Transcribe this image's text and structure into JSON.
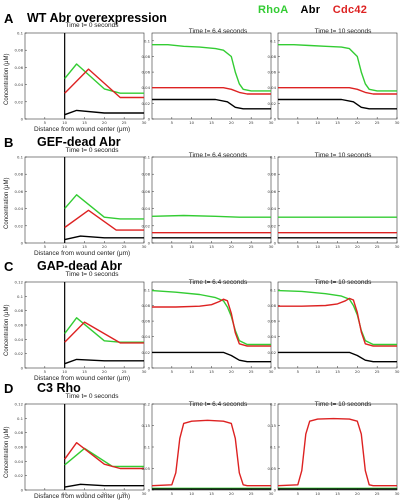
{
  "legend": [
    {
      "label": "RhoA",
      "color": "#33cc33"
    },
    {
      "label": "Abr",
      "color": "#000000"
    },
    {
      "label": "Cdc42",
      "color": "#dd2222"
    }
  ],
  "ylabel": "Concentration (μM)",
  "xlabel": "Distance from wound center (μm)",
  "rows": [
    {
      "letter": "A",
      "title": "WT Abr overexpression",
      "times": [
        "Time t= 0 seconds",
        "Time t= 6.4 seconds",
        "Time t= 10 seconds"
      ]
    },
    {
      "letter": "B",
      "title": "GEF-dead Abr",
      "times": [
        "Time t= 0 seconds",
        "Time t= 6.4 seconds",
        "Time t= 10 seconds"
      ]
    },
    {
      "letter": "C",
      "title": "GAP-dead Abr",
      "times": [
        "Time t= 0 seconds",
        "Time t= 6.4 seconds",
        "Time t= 10 seconds"
      ]
    },
    {
      "letter": "D",
      "title": "C3 Rho",
      "times": [
        "Time t= 0 seconds",
        "Time t= 6.4 seconds",
        "Time t= 10 seconds"
      ]
    }
  ],
  "chart_data": [
    {
      "type": "line",
      "row": "A",
      "title": "Time t= 0 seconds",
      "xlabel": "Distance from wound center (μm)",
      "ylabel": "Concentration (μM)",
      "xlim": [
        0,
        30
      ],
      "ylim": [
        0,
        0.1
      ],
      "yticks": [
        0,
        0.02,
        0.04,
        0.06,
        0.08,
        0.1
      ],
      "xticks": [
        5,
        10,
        15,
        20,
        25,
        30
      ],
      "series": [
        {
          "name": "RhoA",
          "color": "#33cc33",
          "x": [
            10,
            13,
            20,
            24,
            30
          ],
          "y": [
            0.047,
            0.064,
            0.035,
            0.03,
            0.03
          ]
        },
        {
          "name": "Cdc42",
          "color": "#dd2222",
          "x": [
            10,
            16,
            24,
            30
          ],
          "y": [
            0.03,
            0.058,
            0.025,
            0.025
          ]
        },
        {
          "name": "Abr",
          "color": "#000000",
          "x": [
            10,
            13,
            20,
            30
          ],
          "y": [
            0.005,
            0.01,
            0.007,
            0.007
          ]
        }
      ]
    },
    {
      "type": "line",
      "row": "A",
      "title": "Time t= 6.4 seconds",
      "xlim": [
        0,
        30
      ],
      "ylim": [
        0,
        0.11
      ],
      "yticks": [
        0,
        0.02,
        0.04,
        0.06,
        0.08,
        0.1
      ],
      "xticks": [
        5,
        10,
        15,
        20,
        25,
        30
      ],
      "series": [
        {
          "name": "RhoA",
          "color": "#33cc33",
          "x": [
            0,
            4,
            8,
            12,
            16,
            18,
            20,
            21,
            22,
            23,
            25,
            30
          ],
          "y": [
            0.095,
            0.095,
            0.093,
            0.092,
            0.09,
            0.088,
            0.08,
            0.06,
            0.045,
            0.038,
            0.036,
            0.036
          ]
        },
        {
          "name": "Cdc42",
          "color": "#dd2222",
          "x": [
            0,
            18,
            20,
            22,
            24,
            30
          ],
          "y": [
            0.04,
            0.04,
            0.038,
            0.034,
            0.032,
            0.032
          ]
        },
        {
          "name": "Abr",
          "color": "#000000",
          "x": [
            0,
            16,
            19,
            21,
            23,
            30
          ],
          "y": [
            0.025,
            0.025,
            0.022,
            0.015,
            0.013,
            0.013
          ]
        }
      ]
    },
    {
      "type": "line",
      "row": "A",
      "title": "Time t= 10 seconds",
      "xlim": [
        0,
        30
      ],
      "ylim": [
        0,
        0.11
      ],
      "yticks": [
        0,
        0.02,
        0.04,
        0.06,
        0.08,
        0.1
      ],
      "xticks": [
        5,
        10,
        15,
        20,
        25,
        30
      ],
      "series": [
        {
          "name": "RhoA",
          "color": "#33cc33",
          "x": [
            0,
            4,
            8,
            12,
            16,
            18,
            20,
            21,
            22,
            23,
            25,
            30
          ],
          "y": [
            0.095,
            0.095,
            0.094,
            0.093,
            0.092,
            0.09,
            0.08,
            0.06,
            0.045,
            0.038,
            0.036,
            0.036
          ]
        },
        {
          "name": "Cdc42",
          "color": "#dd2222",
          "x": [
            0,
            18,
            20,
            22,
            24,
            30
          ],
          "y": [
            0.04,
            0.04,
            0.038,
            0.034,
            0.032,
            0.032
          ]
        },
        {
          "name": "Abr",
          "color": "#000000",
          "x": [
            0,
            16,
            19,
            21,
            23,
            30
          ],
          "y": [
            0.025,
            0.025,
            0.022,
            0.015,
            0.013,
            0.013
          ]
        }
      ]
    },
    {
      "type": "line",
      "row": "B",
      "title": "Time t= 0 seconds",
      "xlim": [
        0,
        30
      ],
      "ylim": [
        0,
        0.1
      ],
      "yticks": [
        0,
        0.02,
        0.04,
        0.06,
        0.08,
        0.1
      ],
      "xticks": [
        5,
        10,
        15,
        20,
        25,
        30
      ],
      "series": [
        {
          "name": "RhoA",
          "color": "#33cc33",
          "x": [
            10,
            13,
            20,
            24,
            30
          ],
          "y": [
            0.04,
            0.056,
            0.03,
            0.028,
            0.028
          ]
        },
        {
          "name": "Cdc42",
          "color": "#dd2222",
          "x": [
            10,
            16,
            23,
            30
          ],
          "y": [
            0.018,
            0.038,
            0.015,
            0.015
          ]
        },
        {
          "name": "Abr",
          "color": "#000000",
          "x": [
            10,
            14,
            20,
            30
          ],
          "y": [
            0.004,
            0.008,
            0.006,
            0.006
          ]
        }
      ]
    },
    {
      "type": "line",
      "row": "B",
      "title": "Time t= 6.4 seconds",
      "xlim": [
        0,
        30
      ],
      "ylim": [
        0,
        0.1
      ],
      "yticks": [
        0,
        0.02,
        0.04,
        0.06,
        0.08,
        0.1
      ],
      "xticks": [
        5,
        10,
        15,
        20,
        25,
        30
      ],
      "series": [
        {
          "name": "RhoA",
          "color": "#33cc33",
          "x": [
            0,
            8,
            16,
            22,
            30
          ],
          "y": [
            0.031,
            0.032,
            0.031,
            0.03,
            0.03
          ]
        },
        {
          "name": "Cdc42",
          "color": "#dd2222",
          "x": [
            0,
            30
          ],
          "y": [
            0.012,
            0.012
          ]
        },
        {
          "name": "Abr",
          "color": "#000000",
          "x": [
            0,
            30
          ],
          "y": [
            0.006,
            0.006
          ]
        }
      ]
    },
    {
      "type": "line",
      "row": "B",
      "title": "Time t= 10 seconds",
      "xlim": [
        0,
        30
      ],
      "ylim": [
        0,
        0.1
      ],
      "yticks": [
        0,
        0.02,
        0.04,
        0.06,
        0.08,
        0.1
      ],
      "xticks": [
        5,
        10,
        15,
        20,
        25,
        30
      ],
      "series": [
        {
          "name": "RhoA",
          "color": "#33cc33",
          "x": [
            0,
            30
          ],
          "y": [
            0.03,
            0.03
          ]
        },
        {
          "name": "Cdc42",
          "color": "#dd2222",
          "x": [
            0,
            30
          ],
          "y": [
            0.012,
            0.012
          ]
        },
        {
          "name": "Abr",
          "color": "#000000",
          "x": [
            0,
            30
          ],
          "y": [
            0.006,
            0.006
          ]
        }
      ]
    },
    {
      "type": "line",
      "row": "C",
      "title": "Time t= 0 seconds",
      "xlim": [
        0,
        30
      ],
      "ylim": [
        0,
        0.12
      ],
      "yticks": [
        0,
        0.02,
        0.04,
        0.06,
        0.08,
        0.1,
        0.12
      ],
      "xticks": [
        5,
        10,
        15,
        20,
        25,
        30
      ],
      "series": [
        {
          "name": "RhoA",
          "color": "#33cc33",
          "x": [
            10,
            13,
            20,
            24,
            30
          ],
          "y": [
            0.048,
            0.07,
            0.038,
            0.036,
            0.036
          ]
        },
        {
          "name": "Cdc42",
          "color": "#dd2222",
          "x": [
            10,
            15,
            24,
            30
          ],
          "y": [
            0.036,
            0.064,
            0.035,
            0.035
          ]
        },
        {
          "name": "Abr",
          "color": "#000000",
          "x": [
            10,
            13,
            20,
            30
          ],
          "y": [
            0.006,
            0.012,
            0.01,
            0.01
          ]
        }
      ]
    },
    {
      "type": "line",
      "row": "C",
      "title": "Time t= 6.4 seconds",
      "xlim": [
        0,
        30
      ],
      "ylim": [
        0,
        0.11
      ],
      "yticks": [
        0,
        0.02,
        0.04,
        0.06,
        0.08,
        0.1
      ],
      "xticks": [
        5,
        10,
        15,
        20,
        25,
        30
      ],
      "series": [
        {
          "name": "RhoA",
          "color": "#33cc33",
          "x": [
            0,
            6,
            12,
            16,
            18,
            19,
            20,
            21,
            22,
            24,
            30
          ],
          "y": [
            0.099,
            0.097,
            0.094,
            0.09,
            0.086,
            0.078,
            0.066,
            0.048,
            0.035,
            0.03,
            0.03
          ]
        },
        {
          "name": "Cdc42",
          "color": "#dd2222",
          "x": [
            0,
            6,
            12,
            15,
            17,
            18,
            19,
            20,
            21,
            22,
            24,
            30
          ],
          "y": [
            0.078,
            0.078,
            0.079,
            0.081,
            0.085,
            0.088,
            0.086,
            0.07,
            0.045,
            0.031,
            0.028,
            0.028
          ]
        },
        {
          "name": "Abr",
          "color": "#000000",
          "x": [
            0,
            18,
            20,
            22,
            24,
            30
          ],
          "y": [
            0.02,
            0.02,
            0.016,
            0.01,
            0.008,
            0.008
          ]
        }
      ]
    },
    {
      "type": "line",
      "row": "C",
      "title": "Time t= 10 seconds",
      "xlim": [
        0,
        30
      ],
      "ylim": [
        0,
        0.11
      ],
      "yticks": [
        0,
        0.02,
        0.04,
        0.06,
        0.08,
        0.1
      ],
      "xticks": [
        5,
        10,
        15,
        20,
        25,
        30
      ],
      "series": [
        {
          "name": "RhoA",
          "color": "#33cc33",
          "x": [
            0,
            6,
            12,
            16,
            18,
            19,
            20,
            21,
            22,
            24,
            30
          ],
          "y": [
            0.099,
            0.098,
            0.095,
            0.092,
            0.088,
            0.08,
            0.068,
            0.048,
            0.035,
            0.03,
            0.03
          ]
        },
        {
          "name": "Cdc42",
          "color": "#dd2222",
          "x": [
            0,
            6,
            12,
            15,
            17,
            18,
            19,
            20,
            21,
            22,
            24,
            30
          ],
          "y": [
            0.079,
            0.079,
            0.08,
            0.082,
            0.086,
            0.089,
            0.087,
            0.071,
            0.046,
            0.031,
            0.028,
            0.028
          ]
        },
        {
          "name": "Abr",
          "color": "#000000",
          "x": [
            0,
            18,
            20,
            22,
            24,
            30
          ],
          "y": [
            0.02,
            0.02,
            0.016,
            0.01,
            0.008,
            0.008
          ]
        }
      ]
    },
    {
      "type": "line",
      "row": "D",
      "title": "Time t= 0 seconds",
      "xlim": [
        0,
        30
      ],
      "ylim": [
        0,
        0.12
      ],
      "yticks": [
        0,
        0.02,
        0.04,
        0.06,
        0.08,
        0.1,
        0.12
      ],
      "xticks": [
        5,
        10,
        15,
        20,
        25,
        30
      ],
      "series": [
        {
          "name": "RhoA",
          "color": "#33cc33",
          "x": [
            10,
            15,
            22,
            30
          ],
          "y": [
            0.035,
            0.058,
            0.033,
            0.033
          ]
        },
        {
          "name": "Cdc42",
          "color": "#dd2222",
          "x": [
            10,
            13,
            20,
            24,
            30
          ],
          "y": [
            0.043,
            0.066,
            0.036,
            0.03,
            0.03
          ]
        },
        {
          "name": "Abr",
          "color": "#000000",
          "x": [
            10,
            14,
            20,
            30
          ],
          "y": [
            0.004,
            0.008,
            0.006,
            0.006
          ]
        }
      ]
    },
    {
      "type": "line",
      "row": "D",
      "title": "Time t= 6.4 seconds",
      "xlim": [
        0,
        30
      ],
      "ylim": [
        0,
        0.2
      ],
      "yticks": [
        0,
        0.05,
        0.1,
        0.15,
        0.2
      ],
      "xticks": [
        5,
        10,
        15,
        20,
        25,
        30
      ],
      "series": [
        {
          "name": "Cdc42",
          "color": "#dd2222",
          "x": [
            0,
            5,
            6,
            7,
            8,
            10,
            14,
            18,
            20,
            21,
            22,
            23,
            24,
            30
          ],
          "y": [
            0.01,
            0.012,
            0.04,
            0.12,
            0.155,
            0.16,
            0.162,
            0.16,
            0.155,
            0.12,
            0.04,
            0.012,
            0.01,
            0.01
          ]
        },
        {
          "name": "RhoA",
          "color": "#33cc33",
          "x": [
            0,
            30
          ],
          "y": [
            0.004,
            0.004
          ]
        },
        {
          "name": "Abr",
          "color": "#000000",
          "x": [
            0,
            30
          ],
          "y": [
            0.002,
            0.002
          ]
        }
      ]
    },
    {
      "type": "line",
      "row": "D",
      "title": "Time t= 10 seconds",
      "xlim": [
        0,
        30
      ],
      "ylim": [
        0,
        0.2
      ],
      "yticks": [
        0,
        0.05,
        0.1,
        0.15,
        0.2
      ],
      "xticks": [
        5,
        10,
        15,
        20,
        25,
        30
      ],
      "series": [
        {
          "name": "Cdc42",
          "color": "#dd2222",
          "x": [
            0,
            5,
            6,
            7,
            8,
            10,
            14,
            18,
            20,
            21,
            22,
            23,
            24,
            30
          ],
          "y": [
            0.01,
            0.012,
            0.045,
            0.13,
            0.16,
            0.165,
            0.166,
            0.165,
            0.16,
            0.13,
            0.045,
            0.012,
            0.01,
            0.01
          ]
        },
        {
          "name": "RhoA",
          "color": "#33cc33",
          "x": [
            0,
            30
          ],
          "y": [
            0.004,
            0.004
          ]
        },
        {
          "name": "Abr",
          "color": "#000000",
          "x": [
            0,
            30
          ],
          "y": [
            0.002,
            0.002
          ]
        }
      ]
    }
  ]
}
